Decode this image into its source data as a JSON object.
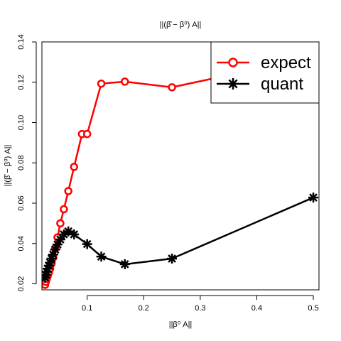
{
  "chart_data": {
    "type": "line",
    "title": "||(β̂ − β⁰) A||",
    "xlabel": "||β⁰ A||",
    "ylabel": "||(β̂ − β⁰) A||",
    "xlim": [
      0.02,
      0.51
    ],
    "ylim": [
      0.017,
      0.14
    ],
    "x_ticks": [
      0.1,
      0.2,
      0.3,
      0.4,
      0.5
    ],
    "x_tick_labels": [
      "0.1",
      "0.2",
      "0.3",
      "0.4",
      "0.5"
    ],
    "y_ticks": [
      0.02,
      0.04,
      0.06,
      0.08,
      0.1,
      0.12,
      0.14
    ],
    "y_tick_labels": [
      "0.02",
      "0.04",
      "0.06",
      "0.08",
      "0.10",
      "0.12",
      "0.14"
    ],
    "grid": false,
    "legend_position": "top-right",
    "series": [
      {
        "name": "expect",
        "color": "#ff0000",
        "marker": "circle",
        "x": [
          0.0256,
          0.027,
          0.0286,
          0.0303,
          0.0323,
          0.0345,
          0.037,
          0.04,
          0.0435,
          0.0476,
          0.0526,
          0.0588,
          0.0667,
          0.0769,
          0.0909,
          0.1,
          0.125,
          0.1667,
          0.25,
          0.5
        ],
        "y": [
          0.0195,
          0.021,
          0.0225,
          0.024,
          0.0255,
          0.0275,
          0.03,
          0.033,
          0.0375,
          0.043,
          0.05,
          0.057,
          0.066,
          0.078,
          0.0943,
          0.0943,
          0.1193,
          0.1203,
          0.1175,
          0.1325
        ]
      },
      {
        "name": "quant",
        "color": "#000000",
        "marker": "asterisk",
        "x": [
          0.0256,
          0.027,
          0.0286,
          0.0303,
          0.0323,
          0.0345,
          0.037,
          0.04,
          0.0435,
          0.0476,
          0.0526,
          0.0588,
          0.0667,
          0.0769,
          0.1,
          0.125,
          0.1667,
          0.25,
          0.5
        ],
        "y": [
          0.023,
          0.0245,
          0.026,
          0.0275,
          0.029,
          0.0305,
          0.0325,
          0.0345,
          0.037,
          0.0395,
          0.042,
          0.0445,
          0.046,
          0.0445,
          0.0397,
          0.0335,
          0.0297,
          0.0325,
          0.0628
        ]
      }
    ]
  }
}
